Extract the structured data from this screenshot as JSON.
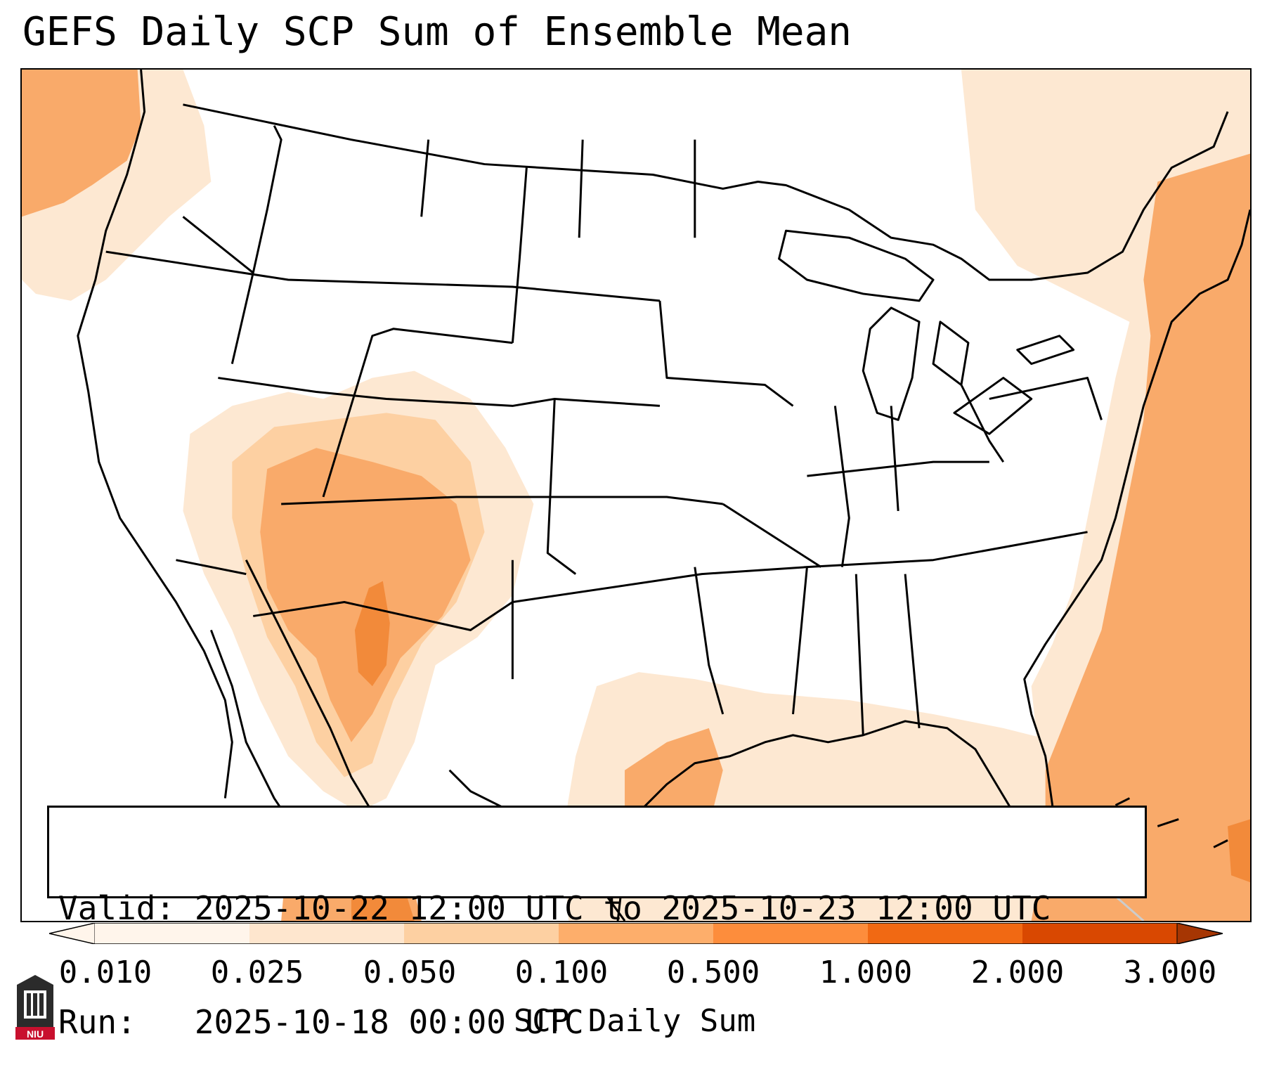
{
  "title": "GEFS Daily SCP Sum of Ensemble Mean",
  "info": {
    "valid_line": "Valid: 2025-10-22 12:00 UTC to 2025-10-23 12:00 UTC",
    "run_line": "Run:   2025-10-18 00:00 UTC"
  },
  "colorbar": {
    "label": "SCP Daily Sum",
    "ticks": [
      "0.010",
      "0.025",
      "0.050",
      "0.100",
      "0.500",
      "1.000",
      "2.000",
      "3.000"
    ],
    "colors": [
      "#fff5eb",
      "#fee6ce",
      "#fdd0a2",
      "#fdae6b",
      "#fd8d3c",
      "#f16913",
      "#d94801",
      "#a63603"
    ]
  },
  "logo": {
    "text": "NIU",
    "color": "#c8102e",
    "icon": "niu-building-logo"
  },
  "map": {
    "fill_colors": {
      "light": "#fde8d2",
      "medium": "#fdd0a2",
      "orange": "#f9aa6a",
      "dark": "#f28a3a",
      "darkest": "#e66a1a"
    }
  }
}
